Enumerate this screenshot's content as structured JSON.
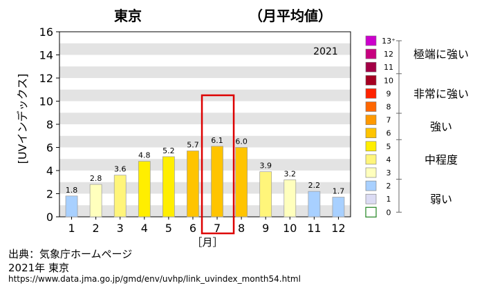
{
  "source": {
    "label": "出典：気象庁ホームページ",
    "year_city": "2021年 東京",
    "url": "https://www.data.jma.go.jp/gmd/env/uvhp/link_uvindex_month54.html"
  },
  "chart_data": {
    "type": "bar",
    "title": "東京",
    "subtitle": "（月平均値）",
    "year_label": "2021",
    "ylabel": "[UVインデックス]",
    "xlabel": "［月］",
    "ylim": [
      0,
      16
    ],
    "yticks": [
      0,
      2,
      4,
      6,
      8,
      10,
      12,
      14,
      16
    ],
    "categories": [
      "1",
      "2",
      "3",
      "4",
      "5",
      "6",
      "7",
      "8",
      "9",
      "10",
      "11",
      "12"
    ],
    "values": [
      1.8,
      2.8,
      3.6,
      4.8,
      5.2,
      5.7,
      6.1,
      6.0,
      3.9,
      3.2,
      2.2,
      1.7
    ],
    "value_labels": [
      "1.8",
      "2.8",
      "3.6",
      "4.8",
      "5.2",
      "5.7",
      "6.1",
      "6.0",
      "3.9",
      "3.2",
      "2.2",
      "1.7"
    ],
    "highlight_category": "7",
    "highlight_color": "#dd0000",
    "grid": "horizontal-bands",
    "legend_position": "right",
    "legend": {
      "levels": [
        {
          "label": "13⁺",
          "color": "#cc00cc"
        },
        {
          "label": "12",
          "color": "#c7007f"
        },
        {
          "label": "11",
          "color": "#a30045"
        },
        {
          "label": "10",
          "color": "#a50021"
        },
        {
          "label": "9",
          "color": "#ff2200"
        },
        {
          "label": "8",
          "color": "#ff6600"
        },
        {
          "label": "7",
          "color": "#ff9900"
        },
        {
          "label": "6",
          "color": "#ffc400"
        },
        {
          "label": "5",
          "color": "#ffee00"
        },
        {
          "label": "4",
          "color": "#fff57a"
        },
        {
          "label": "3",
          "color": "#ffffbd"
        },
        {
          "label": "2",
          "color": "#a8d0ff"
        },
        {
          "label": "1",
          "color": "#dcdcf4"
        },
        {
          "label": "0",
          "color": "#ffffff"
        }
      ],
      "categories": [
        {
          "label": "極端に強い",
          "from": 11,
          "to": 13
        },
        {
          "label": "非常に強い",
          "from": 8,
          "to": 10
        },
        {
          "label": "強い",
          "from": 6,
          "to": 7
        },
        {
          "label": "中程度",
          "from": 3,
          "to": 5
        },
        {
          "label": "弱い",
          "from": 0,
          "to": 2
        }
      ]
    }
  }
}
